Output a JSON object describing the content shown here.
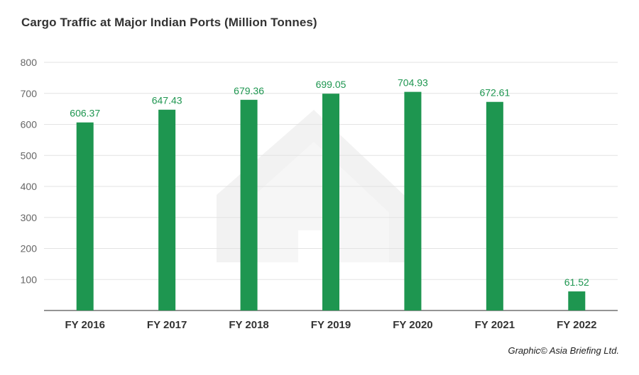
{
  "chart_data": {
    "type": "bar",
    "title": "Cargo Traffic at Major Indian Ports (Million Tonnes)",
    "categories": [
      "FY 2016",
      "FY 2017",
      "FY 2018",
      "FY 2019",
      "FY 2020",
      "FY 2021",
      "FY 2022"
    ],
    "values": [
      606.37,
      647.43,
      679.36,
      699.05,
      704.93,
      672.61,
      61.52
    ],
    "value_labels": [
      "606.37",
      "647.43",
      "679.36",
      "699.05",
      "704.93",
      "672.61",
      "61.52"
    ],
    "y_ticks": [
      100,
      200,
      300,
      400,
      500,
      600,
      700,
      800
    ],
    "ylim": [
      0,
      800
    ],
    "grid": true,
    "xlabel": "",
    "ylabel": "",
    "bar_color": "#1e9650",
    "label_color": "#1e9650"
  },
  "credit": "Graphic© Asia Briefing Ltd."
}
